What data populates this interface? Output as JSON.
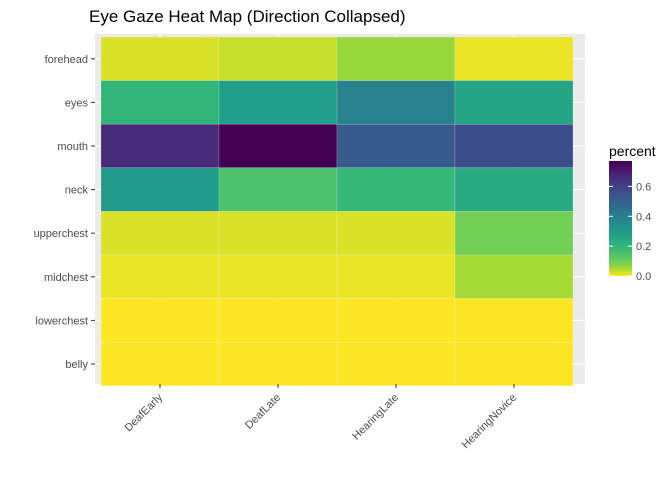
{
  "chart_data": {
    "type": "heatmap",
    "title": "Eye Gaze Heat Map (Direction Collapsed)",
    "xlabel": "",
    "ylabel": "",
    "x_categories": [
      "DeafEarly",
      "DeafLate",
      "HearingLate",
      "HearingNovice"
    ],
    "y_categories": [
      "forehead",
      "eyes",
      "mouth",
      "neck",
      "upperchest",
      "midchest",
      "lowerchest",
      "belly"
    ],
    "values": [
      [
        0.02,
        0.03,
        0.06,
        0.01
      ],
      [
        0.2,
        0.28,
        0.38,
        0.26
      ],
      [
        0.66,
        0.77,
        0.52,
        0.56
      ],
      [
        0.3,
        0.15,
        0.19,
        0.24
      ],
      [
        0.02,
        0.02,
        0.02,
        0.09
      ],
      [
        0.01,
        0.01,
        0.01,
        0.05
      ],
      [
        0.0,
        0.0,
        0.0,
        0.0
      ],
      [
        0.0,
        0.0,
        0.0,
        0.0
      ]
    ],
    "legend": {
      "title": "percent",
      "ticks": [
        0.0,
        0.2,
        0.4,
        0.6
      ],
      "tick_labels": [
        "0.0",
        "0.2",
        "0.4",
        "0.6"
      ],
      "range": [
        0,
        0.77
      ],
      "placement": "right"
    },
    "colorscale": "viridis-reversed",
    "background": "#ebebeb",
    "grid": true
  }
}
